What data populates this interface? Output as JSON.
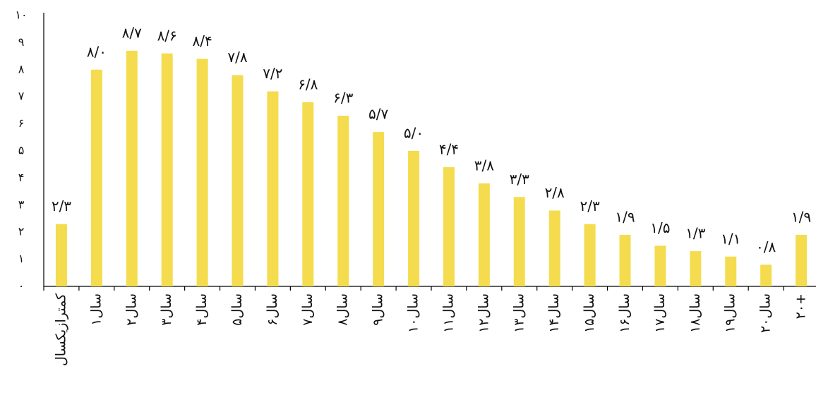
{
  "chart_data": {
    "type": "bar",
    "color": "#f4dc4e",
    "categories": [
      "کمترازیکسال",
      "۱سال",
      "۲سال",
      "۳سال",
      "۴سال",
      "۵سال",
      "۶سال",
      "۷سال",
      "۸سال",
      "۹سال",
      "۱۰سال",
      "۱۱سال",
      "۱۲سال",
      "۱۳سال",
      "۱۴سال",
      "۱۵سال",
      "۱۶سال",
      "۱۷سال",
      "۱۸سال",
      "۱۹سال",
      "۲۰سال",
      "۲۰+"
    ],
    "values": [
      2.3,
      8.0,
      8.7,
      8.6,
      8.4,
      7.8,
      7.2,
      6.8,
      6.3,
      5.7,
      5.0,
      4.4,
      3.8,
      3.3,
      2.8,
      2.3,
      1.9,
      1.5,
      1.3,
      1.1,
      0.8,
      1.9
    ],
    "value_labels": [
      "۲/۳",
      "۸/۰",
      "۸/۷",
      "۸/۶",
      "۸/۴",
      "۷/۸",
      "۷/۲",
      "۶/۸",
      "۶/۳",
      "۵/۷",
      "۵/۰",
      "۴/۴",
      "۳/۸",
      "۳/۳",
      "۲/۸",
      "۲/۳",
      "۱/۹",
      "۱/۵",
      "۱/۳",
      "۱/۱",
      "۰/۸",
      "۱/۹"
    ],
    "ylim": [
      0,
      10
    ],
    "yticks": [
      {
        "value": 0,
        "label": "۰"
      },
      {
        "value": 1,
        "label": "۱"
      },
      {
        "value": 2,
        "label": "۲"
      },
      {
        "value": 3,
        "label": "۳"
      },
      {
        "value": 4,
        "label": "۴"
      },
      {
        "value": 5,
        "label": "۵"
      },
      {
        "value": 6,
        "label": "۶"
      },
      {
        "value": 7,
        "label": "۷"
      },
      {
        "value": 8,
        "label": "۸"
      },
      {
        "value": 9,
        "label": "۹"
      },
      {
        "value": 10,
        "label": "۱۰"
      }
    ],
    "grid": false
  }
}
